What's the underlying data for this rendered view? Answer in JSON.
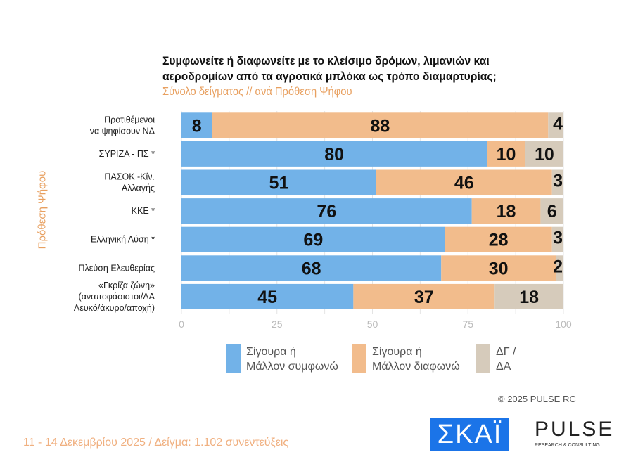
{
  "chart_data": {
    "type": "bar",
    "orientation": "horizontal",
    "stacked": true,
    "title": "Συμφωνείτε ή διαφωνείτε με το κλείσιμο δρόμων, λιμανιών και αεροδρομίων από τα αγροτικά μπλόκα ως τρόπο διαμαρτυρίας;",
    "subtitle": "Σύνολο δείγματος // ανά Πρόθεση Ψήφου",
    "ylabel": "Πρόθεση Ψήφου",
    "xlim": [
      0,
      100
    ],
    "xticks": [
      "0",
      "25",
      "50",
      "75",
      "100"
    ],
    "categories": [
      [
        "Προτιθέμενοι",
        "να ψηφίσουν ΝΔ"
      ],
      [
        "ΣΥΡΙΖΑ - ΠΣ *"
      ],
      [
        "ΠΑΣΟΚ -Κίν.",
        "Αλλαγής"
      ],
      [
        "ΚΚΕ *"
      ],
      [
        "Ελληνική Λύση *"
      ],
      [
        "Πλεύση Ελευθερίας"
      ],
      [
        "«Γκρίζα ζώνη»",
        "(αναποφάσιστοι/ΔΑ",
        "Λευκό/άκυρο/αποχή)"
      ]
    ],
    "series": [
      {
        "name": "Σίγουρα ή Μάλλον συμφωνώ",
        "color": "#72b2e8",
        "values": [
          8,
          80,
          51,
          76,
          69,
          68,
          45
        ]
      },
      {
        "name": "Σίγουρα ή Μάλλον διαφωνώ",
        "color": "#f2bc8c",
        "values": [
          88,
          10,
          46,
          18,
          28,
          30,
          37
        ]
      },
      {
        "name": "ΔΓ / ΔΑ",
        "color": "#d6cbbb",
        "values": [
          4,
          10,
          3,
          6,
          3,
          2,
          18
        ]
      }
    ],
    "legend_lines": [
      [
        "Σίγουρα ή",
        "Μάλλον συμφωνώ"
      ],
      [
        "Σίγουρα ή",
        "Μάλλον διαφωνώ"
      ],
      [
        "ΔΓ /",
        "ΔΑ"
      ]
    ],
    "legend_position": "bottom"
  },
  "copyright": "©  2025  PULSE RC",
  "footer": "11 - 14 Δεκεμβρίου 2025  /  Δείγμα:  1.102 συνεντεύξεις",
  "logos": {
    "skai": "ΣΚΑΪ",
    "pulse": "PULSE",
    "pulse_sub": "RESEARCH & CONSULTING"
  }
}
